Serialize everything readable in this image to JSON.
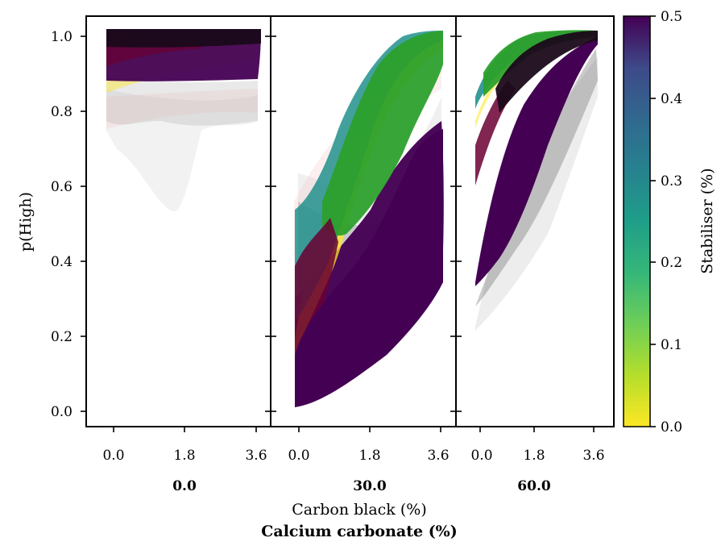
{
  "chart_data": {
    "type": "line",
    "ylabel": "p(High)",
    "xlabel": "Carbon black (%)",
    "facet_label": "Calcium carbonate (%)",
    "ylim": [
      -0.04,
      1.04
    ],
    "xlim": [
      -0.55,
      4.15
    ],
    "y_ticks": [
      "0.0",
      "0.2",
      "0.4",
      "0.6",
      "0.8",
      "1.0"
    ],
    "x_ticks": [
      "0.0",
      "1.8",
      "3.6"
    ],
    "colorbar": {
      "label": "Stabiliser (%)",
      "range": [
        0.0,
        0.5
      ],
      "ticks": [
        "0.0",
        "0.1",
        "0.2",
        "0.3",
        "0.4",
        "0.5"
      ],
      "colormap": "viridis"
    },
    "grid": false,
    "panels": [
      {
        "title": "0.0",
        "series": [
          {
            "stabiliser": 0.0,
            "color": "#fde725",
            "x": [
              0,
              0.9,
              1.8,
              2.7,
              3.6
            ],
            "y": [
              0.88,
              0.9,
              0.93,
              0.95,
              0.97
            ]
          },
          {
            "stabiliser": 0.25,
            "color": "#21918c",
            "x": [
              0,
              0.9,
              1.8,
              2.7,
              3.6
            ],
            "y": [
              0.97,
              0.98,
              0.99,
              0.995,
              1.0
            ]
          },
          {
            "stabiliser": 0.5,
            "color": "#440154",
            "x": [
              0,
              0.9,
              1.8,
              2.7,
              3.6
            ],
            "y": [
              0.9,
              0.93,
              0.95,
              0.97,
              0.99
            ]
          }
        ],
        "uncertainty_band_low": [
          0.72,
          0.72,
          0.52,
          0.65,
          0.75
        ]
      },
      {
        "title": "30.0",
        "series": [
          {
            "stabiliser": 0.0,
            "color": "#fde725",
            "x": [
              0,
              0.9,
              1.8,
              2.7,
              3.6
            ],
            "y": [
              0.15,
              0.55,
              0.9,
              0.98,
              1.0
            ]
          },
          {
            "stabiliser": 0.25,
            "color": "#21918c",
            "x": [
              0,
              0.9,
              1.8,
              2.7,
              3.6
            ],
            "y": [
              0.45,
              0.62,
              0.85,
              0.96,
              1.0
            ]
          },
          {
            "stabiliser": 0.5,
            "color": "#440154",
            "x": [
              0,
              0.9,
              1.8,
              2.7,
              3.6
            ],
            "y": [
              0.05,
              0.12,
              0.22,
              0.38,
              0.62
            ]
          }
        ],
        "uncertainty_band_low": [
          0.05,
          0.1,
          0.2,
          0.3,
          0.35
        ]
      },
      {
        "title": "60.0",
        "series": [
          {
            "stabiliser": 0.0,
            "color": "#fde725",
            "x": [
              0,
              0.9,
              1.8,
              2.7,
              3.6
            ],
            "y": [
              0.9,
              0.98,
              1.0,
              1.0,
              1.0
            ]
          },
          {
            "stabiliser": 0.25,
            "color": "#21918c",
            "x": [
              0,
              0.9,
              1.8,
              2.7,
              3.6
            ],
            "y": [
              0.92,
              0.98,
              1.0,
              1.0,
              1.0
            ]
          },
          {
            "stabiliser": 0.5,
            "color": "#440154",
            "x": [
              0,
              0.9,
              1.8,
              2.7,
              3.6
            ],
            "y": [
              0.45,
              0.85,
              0.95,
              0.99,
              1.0
            ]
          }
        ],
        "uncertainty_band_low": [
          0.25,
          0.3,
          0.5,
          0.75,
          0.9
        ]
      }
    ]
  }
}
